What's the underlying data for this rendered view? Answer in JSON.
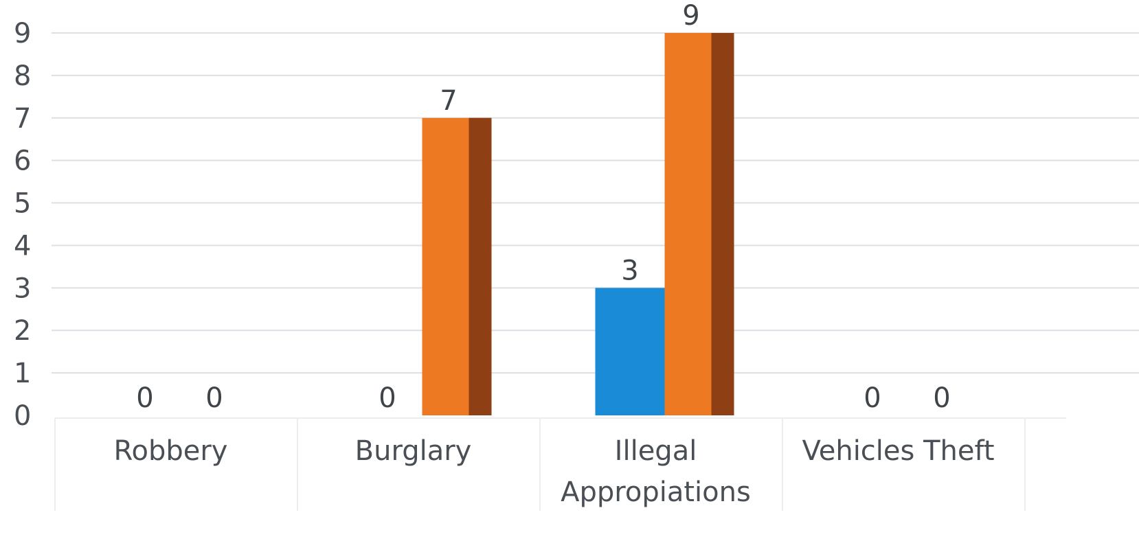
{
  "chart_data": {
    "type": "bar",
    "categories": [
      [
        "Robbery"
      ],
      [
        "Burglary"
      ],
      [
        "Illegal",
        "Appropiations"
      ],
      [
        "Vehicles Theft"
      ]
    ],
    "series": [
      {
        "values": [
          0,
          0,
          3,
          0
        ],
        "color": "#1a8bd6"
      },
      {
        "values": [
          0,
          7,
          9,
          0
        ],
        "color": "#ed7a22",
        "side_color": "#8e3f14"
      }
    ],
    "data_labels": true,
    "ylim": [
      0,
      9
    ],
    "yticks": [
      0,
      1,
      2,
      3,
      4,
      5,
      6,
      7,
      8,
      9
    ],
    "grid": true,
    "legend": "none",
    "title": "",
    "xlabel": "",
    "ylabel": ""
  }
}
